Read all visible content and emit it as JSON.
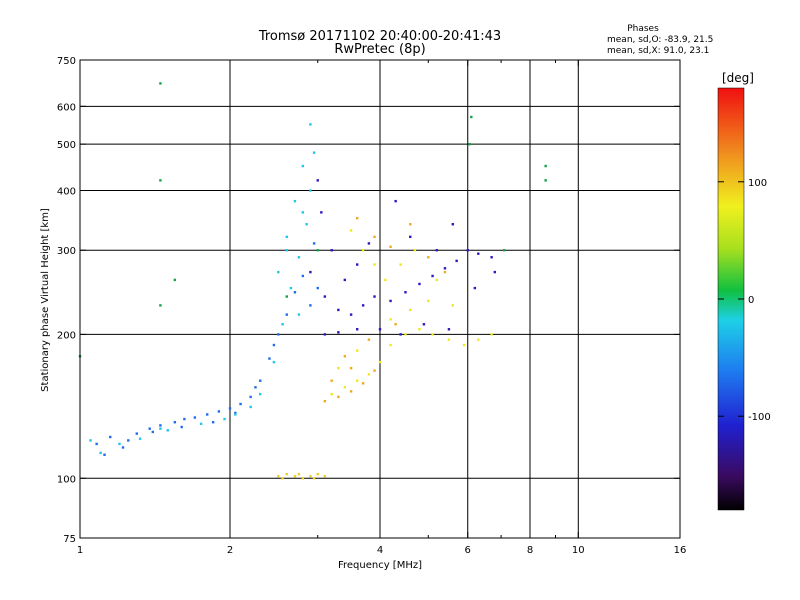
{
  "chart_data": {
    "type": "scatter",
    "title": "Tromsø 20171102 20:40:00-20:41:43",
    "subtitle": "RwPretec (8p)",
    "xlabel": "Frequency [MHz]",
    "ylabel": "Stationary phase Virtual Height [km]",
    "x_scale": "log",
    "y_scale": "log",
    "xlim": [
      1,
      16
    ],
    "ylim": [
      75,
      750
    ],
    "x_ticks": [
      1,
      2,
      4,
      6,
      8,
      10,
      16
    ],
    "x_tick_labels": [
      "1",
      "2",
      "4",
      "6",
      "8",
      "10",
      "16"
    ],
    "x_minor_ticks": [
      3,
      5,
      7,
      9
    ],
    "y_ticks": [
      75,
      100,
      200,
      300,
      400,
      500,
      600,
      750
    ],
    "y_tick_labels": [
      "75",
      "100",
      "200",
      "300",
      "400",
      "500",
      "600",
      "750"
    ],
    "x_gridlines": [
      2,
      4,
      6,
      8,
      10
    ],
    "y_gridlines": [
      100,
      200,
      300,
      400,
      500,
      600
    ],
    "legend_title": "Phases",
    "legend_lines": [
      "mean, sd,O: -83.9, 21.5",
      "mean, sd,X:  91.0, 23.1"
    ],
    "colorbar": {
      "label": "[deg]",
      "range": [
        -180,
        180
      ],
      "ticks": [
        100,
        0,
        -100
      ],
      "tick_labels": [
        "100",
        "0",
        "-100"
      ]
    },
    "series": [
      {
        "color": "#1e6cf0",
        "points": [
          [
            1.08,
            118
          ],
          [
            1.15,
            122
          ],
          [
            1.22,
            116
          ],
          [
            1.3,
            124
          ],
          [
            1.38,
            127
          ],
          [
            1.45,
            129
          ],
          [
            1.55,
            131
          ],
          [
            1.62,
            133
          ],
          [
            1.7,
            134
          ],
          [
            1.8,
            136
          ],
          [
            1.9,
            138
          ],
          [
            2.0,
            140
          ],
          [
            2.1,
            143
          ],
          [
            2.2,
            148
          ],
          [
            2.3,
            160
          ],
          [
            2.4,
            178
          ],
          [
            2.5,
            200
          ],
          [
            2.6,
            220
          ],
          [
            2.7,
            245
          ],
          [
            2.8,
            265
          ],
          [
            2.9,
            230
          ],
          [
            2.95,
            310
          ],
          [
            3.0,
            250
          ],
          [
            1.12,
            112
          ],
          [
            1.25,
            120
          ],
          [
            1.4,
            125
          ],
          [
            1.6,
            128
          ],
          [
            1.85,
            131
          ],
          [
            2.05,
            137
          ],
          [
            2.25,
            155
          ],
          [
            2.45,
            190
          ]
        ]
      },
      {
        "color": "#1ec8e6",
        "points": [
          [
            1.1,
            113
          ],
          [
            1.2,
            118
          ],
          [
            1.32,
            121
          ],
          [
            1.5,
            126
          ],
          [
            1.75,
            130
          ],
          [
            2.05,
            136
          ],
          [
            2.3,
            150
          ],
          [
            2.45,
            175
          ],
          [
            2.55,
            210
          ],
          [
            2.65,
            250
          ],
          [
            2.75,
            290
          ],
          [
            2.85,
            340
          ],
          [
            2.9,
            400
          ],
          [
            2.95,
            480
          ],
          [
            2.8,
            450
          ],
          [
            2.7,
            380
          ],
          [
            2.6,
            320
          ],
          [
            2.5,
            270
          ],
          [
            2.9,
            550
          ],
          [
            2.75,
            220
          ],
          [
            1.05,
            120
          ],
          [
            1.45,
            127
          ],
          [
            1.95,
            133
          ],
          [
            2.2,
            141
          ],
          [
            2.6,
            300
          ],
          [
            2.8,
            360
          ]
        ]
      },
      {
        "color": "#2a18c0",
        "points": [
          [
            2.9,
            270
          ],
          [
            3.1,
            240
          ],
          [
            3.3,
            225
          ],
          [
            3.5,
            220
          ],
          [
            3.7,
            230
          ],
          [
            3.9,
            240
          ],
          [
            4.2,
            235
          ],
          [
            4.5,
            245
          ],
          [
            4.8,
            255
          ],
          [
            5.1,
            265
          ],
          [
            5.4,
            275
          ],
          [
            5.7,
            285
          ],
          [
            6.0,
            300
          ],
          [
            6.3,
            295
          ],
          [
            6.7,
            290
          ],
          [
            3.0,
            420
          ],
          [
            3.05,
            360
          ],
          [
            3.2,
            300
          ],
          [
            3.4,
            260
          ],
          [
            3.6,
            280
          ],
          [
            3.8,
            310
          ],
          [
            4.3,
            380
          ],
          [
            4.6,
            320
          ],
          [
            5.2,
            300
          ],
          [
            5.6,
            340
          ],
          [
            6.2,
            250
          ],
          [
            6.8,
            270
          ],
          [
            3.1,
            200
          ],
          [
            3.3,
            202
          ],
          [
            3.6,
            205
          ],
          [
            4.0,
            205
          ],
          [
            4.4,
            200
          ],
          [
            4.9,
            210
          ],
          [
            5.5,
            205
          ]
        ]
      },
      {
        "color": "#f0e81e",
        "points": [
          [
            3.2,
            150
          ],
          [
            3.4,
            155
          ],
          [
            3.6,
            160
          ],
          [
            3.8,
            165
          ],
          [
            4.0,
            175
          ],
          [
            4.2,
            190
          ],
          [
            4.5,
            200
          ],
          [
            4.8,
            205
          ],
          [
            5.1,
            200
          ],
          [
            5.5,
            195
          ],
          [
            5.9,
            190
          ],
          [
            6.3,
            195
          ],
          [
            6.7,
            200
          ],
          [
            3.5,
            330
          ],
          [
            3.7,
            300
          ],
          [
            3.9,
            280
          ],
          [
            4.1,
            260
          ],
          [
            4.4,
            280
          ],
          [
            4.7,
            300
          ],
          [
            5.2,
            260
          ],
          [
            5.6,
            230
          ],
          [
            3.3,
            170
          ],
          [
            3.6,
            185
          ],
          [
            4.2,
            215
          ],
          [
            4.6,
            225
          ],
          [
            5.0,
            235
          ]
        ]
      },
      {
        "color": "#f0a81e",
        "points": [
          [
            3.1,
            145
          ],
          [
            3.3,
            148
          ],
          [
            3.5,
            152
          ],
          [
            3.7,
            158
          ],
          [
            3.9,
            168
          ],
          [
            3.4,
            180
          ],
          [
            3.8,
            195
          ],
          [
            4.3,
            210
          ],
          [
            3.6,
            350
          ],
          [
            3.9,
            320
          ],
          [
            4.2,
            305
          ],
          [
            4.6,
            340
          ],
          [
            5.0,
            290
          ],
          [
            5.4,
            270
          ],
          [
            3.2,
            160
          ],
          [
            3.5,
            170
          ]
        ]
      },
      {
        "color": "#f0d020",
        "points": [
          [
            2.5,
            101
          ],
          [
            2.6,
            102
          ],
          [
            2.7,
            101
          ],
          [
            2.8,
            100
          ],
          [
            2.9,
            101
          ],
          [
            3.0,
            102
          ],
          [
            3.1,
            101
          ],
          [
            2.55,
            100
          ],
          [
            2.75,
            102
          ],
          [
            2.95,
            100
          ]
        ]
      },
      {
        "color": "#18a048",
        "points": [
          [
            1.45,
            670
          ],
          [
            1.45,
            420
          ],
          [
            1.45,
            230
          ],
          [
            1.55,
            260
          ],
          [
            2.6,
            240
          ],
          [
            3.0,
            300
          ],
          [
            6.05,
            500
          ],
          [
            6.1,
            570
          ],
          [
            8.6,
            420
          ],
          [
            8.6,
            450
          ],
          [
            1.0,
            180
          ],
          [
            7.1,
            300
          ]
        ]
      }
    ]
  }
}
